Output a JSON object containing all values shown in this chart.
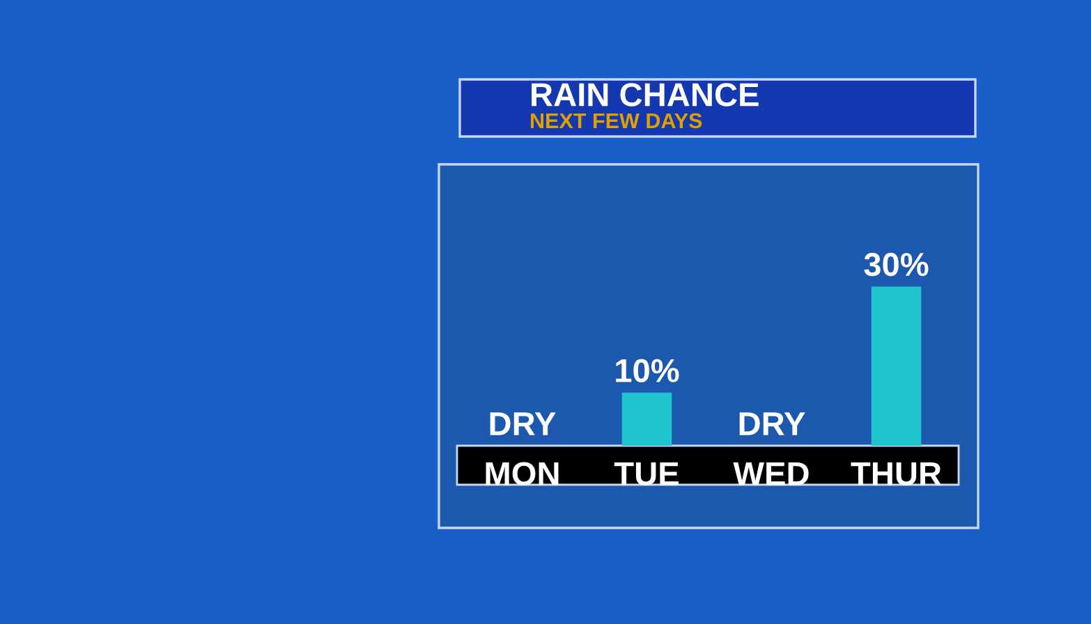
{
  "chart_data": {
    "type": "bar",
    "title": "RAIN CHANCE",
    "subtitle": "NEXT FEW DAYS",
    "categories": [
      "MON",
      "TUE",
      "WED",
      "THUR"
    ],
    "values": [
      0,
      10,
      0,
      30
    ],
    "value_labels": [
      "DRY",
      "10%",
      "DRY",
      "30%"
    ],
    "color": "#20c4cc",
    "grid": false,
    "legend": false
  }
}
